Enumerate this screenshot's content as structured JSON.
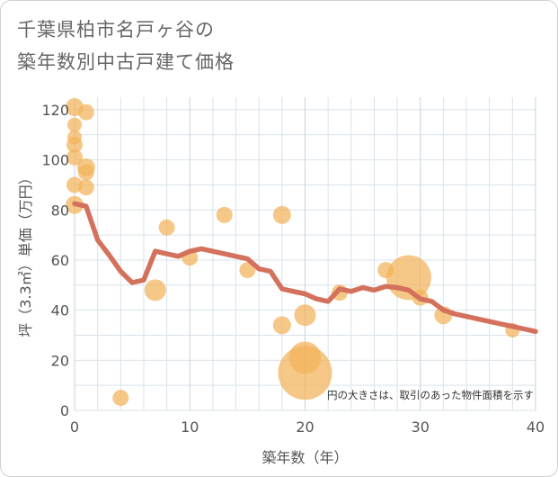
{
  "title": {
    "line1": "千葉県柏市名戸ヶ谷の",
    "line2": "築年数別中古戸建て価格"
  },
  "colors": {
    "bubble": "#f2b35a",
    "line": "#d4715c",
    "grid": "#d9e3ea",
    "plot_bg": "#ffffff"
  },
  "chart_data": {
    "type": "scatter",
    "title": "千葉県柏市名戸ヶ谷の築年数別中古戸建て価格",
    "xlabel": "築年数（年）",
    "ylabel": "坪（3.3㎡）単価（万円）",
    "xlim": [
      0,
      40
    ],
    "ylim": [
      0,
      125
    ],
    "xticks": [
      0,
      10,
      20,
      30,
      40
    ],
    "yticks": [
      0,
      20,
      40,
      60,
      80,
      100,
      120
    ],
    "grid": true,
    "note": "円の大きさは、取引のあった物件面積を示す",
    "bubbles": [
      {
        "x": 0,
        "y": 121,
        "s": 10
      },
      {
        "x": 0,
        "y": 114,
        "s": 8
      },
      {
        "x": 0,
        "y": 109,
        "s": 8
      },
      {
        "x": 0,
        "y": 106,
        "s": 9
      },
      {
        "x": 0,
        "y": 101,
        "s": 9
      },
      {
        "x": 0,
        "y": 90,
        "s": 9
      },
      {
        "x": 0,
        "y": 82,
        "s": 10
      },
      {
        "x": 1,
        "y": 119,
        "s": 9
      },
      {
        "x": 1,
        "y": 97,
        "s": 10
      },
      {
        "x": 1,
        "y": 95,
        "s": 9
      },
      {
        "x": 1,
        "y": 89,
        "s": 9
      },
      {
        "x": 4,
        "y": 5,
        "s": 9
      },
      {
        "x": 7,
        "y": 48,
        "s": 12
      },
      {
        "x": 8,
        "y": 73,
        "s": 9
      },
      {
        "x": 10,
        "y": 61,
        "s": 9
      },
      {
        "x": 13,
        "y": 78,
        "s": 9
      },
      {
        "x": 15,
        "y": 56,
        "s": 9
      },
      {
        "x": 18,
        "y": 78,
        "s": 10
      },
      {
        "x": 18,
        "y": 34,
        "s": 10
      },
      {
        "x": 20,
        "y": 38,
        "s": 12
      },
      {
        "x": 20,
        "y": 15,
        "s": 30
      },
      {
        "x": 20,
        "y": 21,
        "s": 18
      },
      {
        "x": 23,
        "y": 47,
        "s": 9
      },
      {
        "x": 27,
        "y": 56,
        "s": 9
      },
      {
        "x": 29,
        "y": 53,
        "s": 25
      },
      {
        "x": 30,
        "y": 45,
        "s": 9
      },
      {
        "x": 32,
        "y": 38,
        "s": 10
      },
      {
        "x": 38,
        "y": 32,
        "s": 8
      }
    ],
    "series": [
      {
        "x": [
          0,
          1,
          2,
          3,
          4,
          5,
          6,
          7,
          8,
          9,
          10,
          11,
          12,
          13,
          14,
          15,
          16,
          17,
          18,
          19,
          20,
          21,
          22,
          23,
          24,
          25,
          26,
          27,
          28,
          29,
          30,
          31,
          32,
          33,
          34,
          35,
          36,
          37,
          38,
          39,
          40
        ],
        "y": [
          82.5,
          81.5,
          68,
          62,
          55.5,
          51,
          52,
          63.5,
          62.5,
          61.5,
          63.5,
          64.5,
          63.5,
          62.5,
          61.5,
          60.5,
          56.5,
          55.5,
          48.5,
          47.5,
          46.5,
          44.5,
          43.5,
          48.5,
          47.5,
          49,
          48,
          49.5,
          49,
          48,
          44.5,
          43.5,
          40,
          38.5,
          37.5,
          36.5,
          35.5,
          34.5,
          33.5,
          32.5,
          31.5
        ]
      }
    ]
  }
}
